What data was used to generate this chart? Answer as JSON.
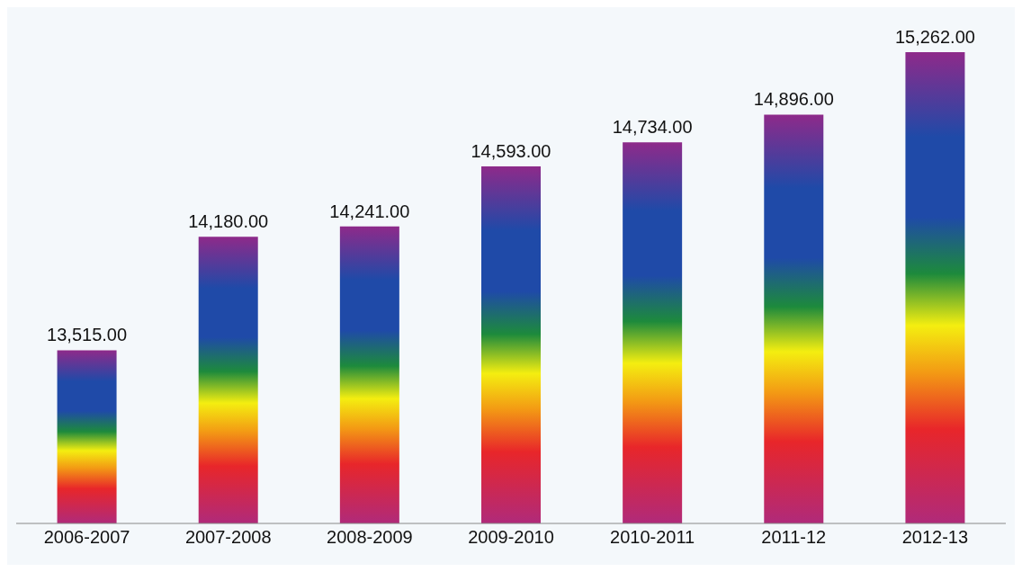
{
  "chart_data": {
    "type": "bar",
    "categories": [
      "2006-2007",
      "2007-2008",
      "2008-2009",
      "2009-2010",
      "2010-2011",
      "2011-12",
      "2012-13"
    ],
    "values": [
      13515,
      14180,
      14241,
      14593,
      14734,
      14896,
      15262
    ],
    "value_labels": [
      "13,515.00",
      "14,180.00",
      "14,241.00",
      "14,593.00",
      "14,734.00",
      "14,896.00",
      "15,262.00"
    ],
    "color": "#1f4aa8",
    "ylim": [
      12500,
      15262
    ]
  }
}
